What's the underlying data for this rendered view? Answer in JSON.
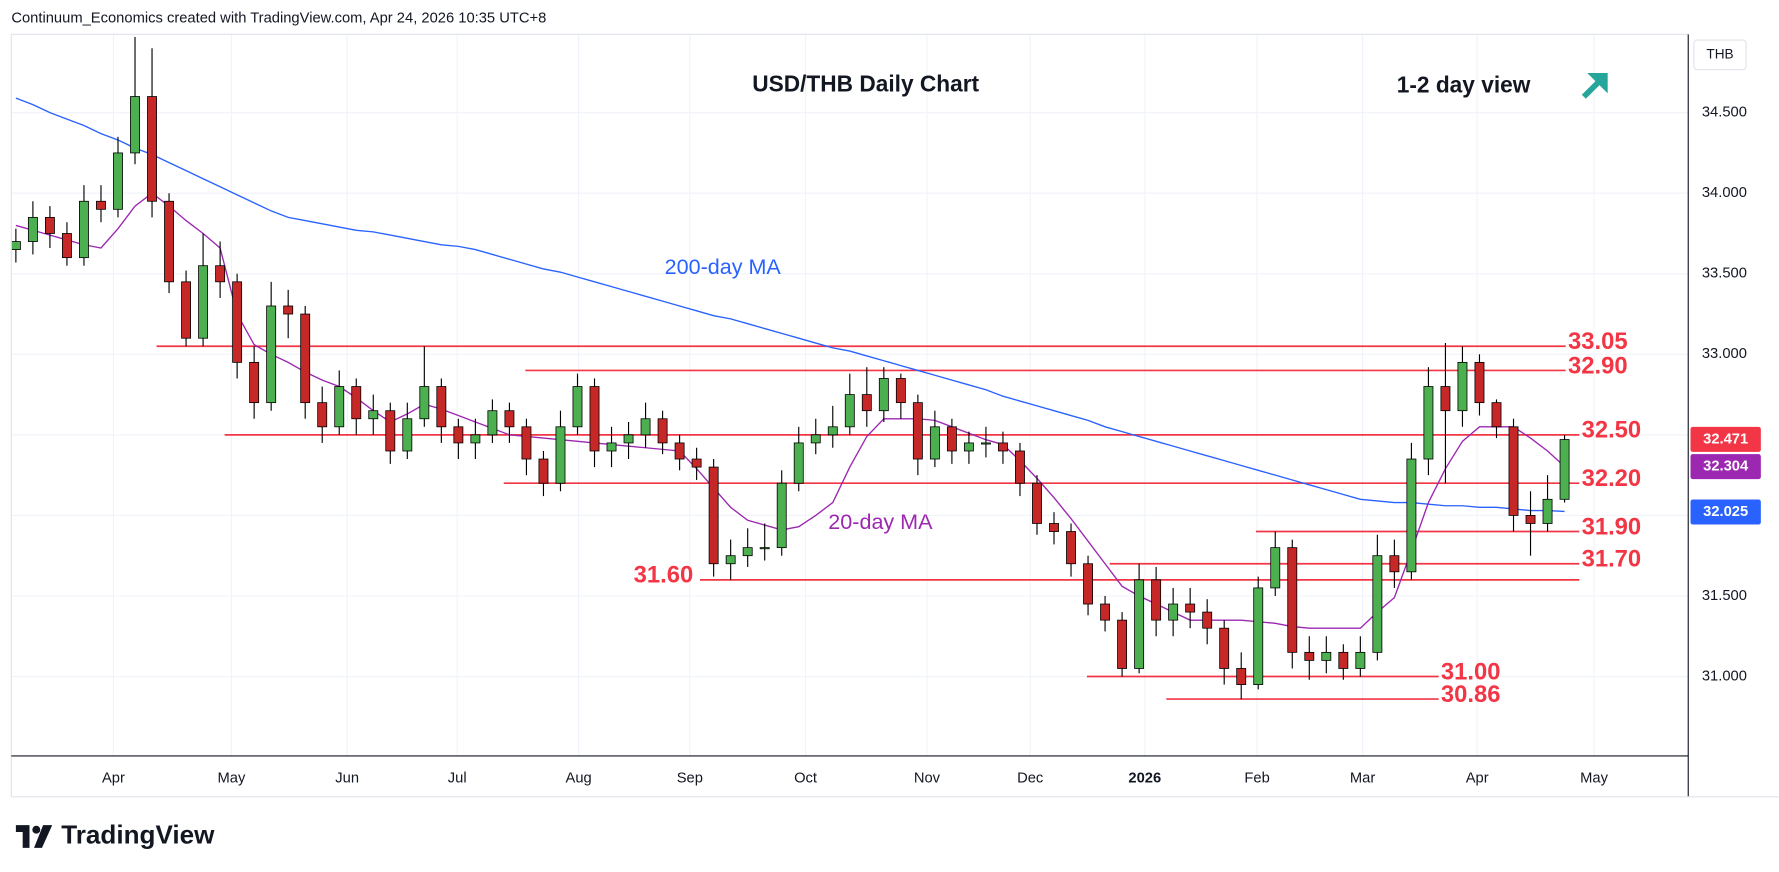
{
  "chart_data": {
    "type": "candlestick",
    "subtitle": "Continuum_Economics created with TradingView.com, Apr 24, 2026 10:35 UTC+8",
    "title": "USD/THB Daily Chart",
    "annotation": "1-2 day view",
    "axis_label": "THB",
    "brand": "TradingView",
    "up_color": "#4caf50",
    "down_color": "#c62828",
    "open": [
      33.65,
      33.7,
      33.85,
      33.75,
      33.6,
      33.95,
      33.9,
      34.25,
      34.6,
      33.95,
      33.45,
      33.1,
      33.55,
      33.45,
      32.95,
      32.7,
      33.3,
      33.25,
      32.7,
      32.55,
      32.8,
      32.6,
      32.65,
      32.4,
      32.6,
      32.8,
      32.55,
      32.45,
      32.5,
      32.65,
      32.55,
      32.35,
      32.2,
      32.55,
      32.8,
      32.4,
      32.45,
      32.5,
      32.6,
      32.45,
      32.35,
      32.3,
      31.7,
      31.75,
      31.8,
      31.8,
      32.2,
      32.45,
      32.5,
      32.55,
      32.75,
      32.65,
      32.85,
      32.7,
      32.35,
      32.55,
      32.4,
      32.45,
      32.45,
      32.4,
      32.2,
      31.95,
      31.9,
      31.7,
      31.45,
      31.35,
      31.05,
      31.6,
      31.35,
      31.45,
      31.4,
      31.3,
      31.05,
      30.95,
      31.55,
      31.8,
      31.15,
      31.1,
      31.15,
      31.05,
      31.15,
      31.75,
      31.65,
      32.35,
      32.8,
      32.65,
      32.95,
      32.7,
      32.55,
      32.0,
      31.95,
      32.1
    ],
    "high": [
      33.78,
      33.95,
      33.92,
      33.82,
      34.05,
      34.05,
      34.35,
      34.97,
      34.9,
      34.0,
      33.52,
      33.75,
      33.7,
      33.5,
      33.05,
      33.45,
      33.4,
      33.3,
      32.8,
      32.9,
      32.85,
      32.75,
      32.7,
      32.7,
      33.05,
      32.85,
      32.6,
      32.6,
      32.72,
      32.7,
      32.6,
      32.4,
      32.65,
      32.88,
      32.85,
      32.55,
      32.58,
      32.7,
      32.65,
      32.5,
      32.42,
      32.35,
      31.85,
      31.92,
      31.95,
      32.28,
      32.55,
      32.6,
      32.68,
      32.88,
      32.92,
      32.92,
      32.88,
      32.75,
      32.65,
      32.6,
      32.52,
      32.55,
      32.52,
      32.45,
      32.25,
      32.02,
      31.95,
      31.75,
      31.5,
      31.4,
      31.7,
      31.68,
      31.55,
      31.55,
      31.48,
      31.35,
      31.15,
      31.62,
      31.9,
      31.85,
      31.25,
      31.25,
      31.2,
      31.25,
      31.88,
      31.85,
      32.45,
      32.92,
      33.07,
      33.05,
      33.0,
      32.72,
      32.6,
      32.15,
      32.25,
      32.5
    ],
    "low": [
      33.57,
      33.62,
      33.66,
      33.55,
      33.55,
      33.82,
      33.85,
      34.18,
      33.85,
      33.38,
      33.05,
      33.05,
      33.35,
      32.85,
      32.6,
      32.65,
      33.1,
      32.6,
      32.45,
      32.5,
      32.5,
      32.5,
      32.32,
      32.35,
      32.55,
      32.45,
      32.35,
      32.35,
      32.45,
      32.45,
      32.25,
      32.12,
      32.15,
      32.5,
      32.3,
      32.3,
      32.35,
      32.42,
      32.38,
      32.28,
      32.22,
      31.62,
      31.6,
      31.68,
      31.72,
      31.75,
      32.15,
      32.38,
      32.42,
      32.5,
      32.55,
      32.58,
      32.6,
      32.25,
      32.3,
      32.32,
      32.32,
      32.36,
      32.32,
      32.12,
      31.88,
      31.82,
      31.62,
      31.38,
      31.28,
      31.0,
      31.02,
      31.25,
      31.25,
      31.3,
      31.2,
      30.95,
      30.86,
      30.92,
      31.5,
      31.05,
      30.98,
      31.02,
      30.98,
      31.0,
      31.1,
      31.55,
      31.6,
      32.25,
      32.2,
      32.55,
      32.62,
      32.48,
      31.9,
      31.75,
      31.9,
      32.08
    ],
    "close": [
      33.7,
      33.85,
      33.75,
      33.6,
      33.95,
      33.9,
      34.25,
      34.6,
      33.95,
      33.45,
      33.1,
      33.55,
      33.45,
      32.95,
      32.7,
      33.3,
      33.25,
      32.7,
      32.55,
      32.8,
      32.6,
      32.65,
      32.4,
      32.6,
      32.8,
      32.55,
      32.45,
      32.5,
      32.65,
      32.55,
      32.35,
      32.2,
      32.55,
      32.8,
      32.4,
      32.45,
      32.5,
      32.6,
      32.45,
      32.35,
      32.3,
      31.7,
      31.75,
      31.8,
      31.8,
      32.2,
      32.45,
      32.5,
      32.55,
      32.75,
      32.65,
      32.85,
      32.7,
      32.35,
      32.55,
      32.4,
      32.45,
      32.45,
      32.4,
      32.2,
      31.95,
      31.9,
      31.7,
      31.45,
      31.35,
      31.05,
      31.6,
      31.35,
      31.45,
      31.4,
      31.3,
      31.05,
      30.95,
      31.55,
      31.8,
      31.15,
      31.1,
      31.15,
      31.05,
      31.15,
      31.75,
      31.65,
      32.35,
      32.8,
      32.65,
      32.95,
      32.7,
      32.55,
      32.0,
      31.95,
      32.1,
      32.471
    ],
    "series": [
      {
        "name": "200-day MA",
        "color": "#2962ff",
        "values": [
          34.59,
          34.55,
          34.5,
          34.46,
          34.42,
          34.37,
          34.33,
          34.28,
          34.24,
          34.19,
          34.14,
          34.09,
          34.04,
          33.99,
          33.94,
          33.89,
          33.85,
          33.83,
          33.81,
          33.79,
          33.77,
          33.76,
          33.74,
          33.72,
          33.7,
          33.68,
          33.67,
          33.65,
          33.62,
          33.59,
          33.56,
          33.53,
          33.51,
          33.48,
          33.45,
          33.42,
          33.39,
          33.36,
          33.33,
          33.3,
          33.27,
          33.24,
          33.22,
          33.19,
          33.16,
          33.13,
          33.1,
          33.07,
          33.04,
          33.02,
          32.99,
          32.96,
          32.93,
          32.9,
          32.87,
          32.84,
          32.81,
          32.78,
          32.74,
          32.71,
          32.68,
          32.65,
          32.62,
          32.59,
          32.55,
          32.52,
          32.49,
          32.46,
          32.43,
          32.4,
          32.37,
          32.34,
          32.31,
          32.28,
          32.25,
          32.22,
          32.19,
          32.16,
          32.13,
          32.1,
          32.09,
          32.08,
          32.08,
          32.07,
          32.06,
          32.06,
          32.05,
          32.05,
          32.04,
          32.03,
          32.03,
          32.025
        ]
      },
      {
        "name": "20-day MA",
        "color": "#9c27b0",
        "values": [
          33.8,
          33.77,
          33.74,
          33.71,
          33.68,
          33.66,
          33.78,
          33.92,
          34.0,
          33.92,
          33.83,
          33.75,
          33.66,
          33.25,
          33.06,
          33.0,
          32.95,
          32.89,
          32.84,
          32.8,
          32.73,
          32.65,
          32.58,
          32.63,
          32.69,
          32.66,
          32.62,
          32.58,
          32.54,
          32.5,
          32.49,
          32.48,
          32.47,
          32.46,
          32.45,
          32.44,
          32.43,
          32.42,
          32.41,
          32.4,
          32.29,
          32.17,
          32.05,
          31.97,
          31.94,
          31.91,
          31.93,
          32.0,
          32.08,
          32.3,
          32.49,
          32.6,
          32.6,
          32.6,
          32.59,
          32.55,
          32.51,
          32.47,
          32.44,
          32.34,
          32.23,
          32.11,
          31.98,
          31.84,
          31.7,
          31.56,
          31.5,
          31.45,
          31.4,
          31.35,
          31.35,
          31.35,
          31.35,
          31.34,
          31.33,
          31.31,
          31.3,
          31.3,
          31.3,
          31.3,
          31.4,
          31.49,
          31.78,
          32.08,
          32.29,
          32.46,
          32.55,
          32.55,
          32.55,
          32.48,
          32.4,
          32.304
        ]
      }
    ],
    "last_color": "#f23645",
    "level_color": "#f23645",
    "levels": [
      33.05,
      {
        "value": 32.9,
        "label": "32.90"
      },
      {
        "value": 32.5,
        "label": "32.50"
      },
      {
        "value": 32.2,
        "label": "32.20"
      },
      {
        "value": 31.9,
        "label": "31.90"
      },
      {
        "value": 31.7,
        "label": "31.70"
      },
      {
        "value": 31.6,
        "label": "31.60"
      },
      {
        "value": 31,
        "label": "31.00"
      },
      30.86
    ],
    "ylim": [
      30.507,
      34.986
    ],
    "yticks": [
      {
        "value": 31,
        "label": "31.000"
      },
      {
        "value": 31.5,
        "label": "31.500"
      },
      {
        "value": 32,
        "label": "32.000"
      },
      {
        "value": 32.5,
        "label": "32.500"
      },
      {
        "value": 33,
        "label": "33.000"
      },
      {
        "value": 33.5,
        "label": "33.500"
      },
      {
        "value": 34,
        "label": "34.000"
      },
      {
        "value": 34.5,
        "label": "34.500"
      }
    ],
    "xticks": [
      "Apr",
      "May",
      "Jun",
      "Jul",
      "Aug",
      "Sep",
      "Oct",
      "Nov",
      "Dec",
      "2026",
      "Feb",
      "Mar",
      "Apr",
      "May"
    ],
    "grid": true
  }
}
